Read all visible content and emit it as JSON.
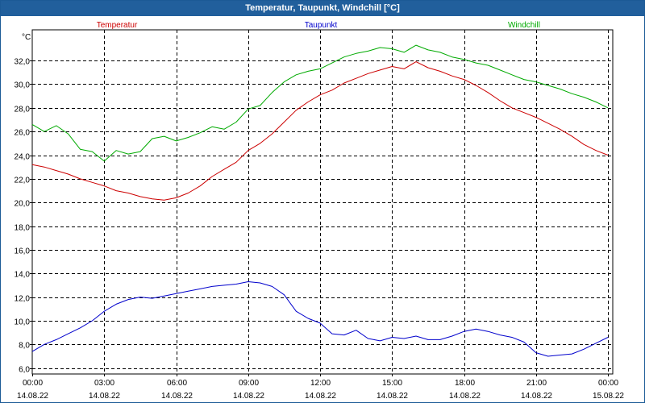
{
  "window": {
    "title": "Temperatur, Taupunkt, Windchill [°C]"
  },
  "colors": {
    "titlebar": "#215f9c",
    "temperatur": "#cc0000",
    "taupunkt": "#0000cc",
    "windchill": "#00aa00"
  },
  "chart_data": {
    "type": "line",
    "title": "Temperatur, Taupunkt, Windchill [°C]",
    "ylabel": "°C",
    "ylim": [
      5.5,
      34.6
    ],
    "y_ticks": [
      6,
      8,
      10,
      12,
      14,
      16,
      18,
      20,
      22,
      24,
      26,
      28,
      30,
      32
    ],
    "y_tick_labels": [
      "6,0",
      "8,0",
      "10,0",
      "12,0",
      "14,0",
      "16,0",
      "18,0",
      "20,0",
      "22,0",
      "24,0",
      "26,0",
      "28,0",
      "30,0",
      "32,0"
    ],
    "xlim": [
      0,
      24.2
    ],
    "x_ticks": [
      0,
      3,
      6,
      9,
      12,
      15,
      18,
      21,
      24
    ],
    "x_tick_labels": [
      [
        "00:00",
        "14.08.22"
      ],
      [
        "03:00",
        "14.08.22"
      ],
      [
        "06:00",
        "14.08.22"
      ],
      [
        "09:00",
        "14.08.22"
      ],
      [
        "12:00",
        "14.08.22"
      ],
      [
        "15:00",
        "14.08.22"
      ],
      [
        "18:00",
        "14.08.22"
      ],
      [
        "21:00",
        "14.08.22"
      ],
      [
        "00:00",
        "15.08.22"
      ]
    ],
    "grid": true,
    "legend_position": "top",
    "series": [
      {
        "name": "Temperatur",
        "color": "#cc0000",
        "x": [
          0,
          0.5,
          1,
          1.5,
          2,
          2.5,
          3,
          3.5,
          4,
          4.5,
          5,
          5.5,
          6,
          6.5,
          7,
          7.5,
          8,
          8.5,
          9,
          9.5,
          10,
          10.5,
          11,
          11.5,
          12,
          12.5,
          13,
          13.5,
          14,
          14.5,
          15,
          15.5,
          16,
          16.5,
          17,
          17.5,
          18,
          18.5,
          19,
          19.5,
          20,
          20.5,
          21,
          21.5,
          22,
          22.5,
          23,
          23.5,
          24
        ],
        "values": [
          23.2,
          23.0,
          22.7,
          22.4,
          22.0,
          21.7,
          21.4,
          21.0,
          20.8,
          20.5,
          20.3,
          20.2,
          20.4,
          20.8,
          21.4,
          22.2,
          22.8,
          23.4,
          24.4,
          25.0,
          25.8,
          26.8,
          27.8,
          28.5,
          29.1,
          29.5,
          30.1,
          30.5,
          30.9,
          31.2,
          31.5,
          31.3,
          31.9,
          31.4,
          31.1,
          30.7,
          30.4,
          29.9,
          29.3,
          28.6,
          28.0,
          27.6,
          27.2,
          26.7,
          26.2,
          25.6,
          24.9,
          24.4,
          24.0
        ]
      },
      {
        "name": "Taupunkt",
        "color": "#0000cc",
        "x": [
          0,
          0.5,
          1,
          1.5,
          2,
          2.5,
          3,
          3.5,
          4,
          4.5,
          5,
          5.5,
          6,
          6.5,
          7,
          7.5,
          8,
          8.5,
          9,
          9.5,
          10,
          10.5,
          11,
          11.5,
          12,
          12.5,
          13,
          13.5,
          14,
          14.5,
          15,
          15.5,
          16,
          16.5,
          17,
          17.5,
          18,
          18.5,
          19,
          19.5,
          20,
          20.5,
          21,
          21.5,
          22,
          22.5,
          23,
          23.5,
          24
        ],
        "values": [
          7.4,
          8.0,
          8.4,
          8.9,
          9.4,
          10.0,
          10.8,
          11.4,
          11.8,
          12.0,
          11.9,
          12.1,
          12.3,
          12.5,
          12.7,
          12.9,
          13.0,
          13.1,
          13.3,
          13.2,
          12.9,
          12.2,
          10.8,
          10.2,
          9.8,
          8.9,
          8.8,
          9.2,
          8.5,
          8.3,
          8.6,
          8.5,
          8.7,
          8.4,
          8.4,
          8.7,
          9.1,
          9.3,
          9.1,
          8.8,
          8.6,
          8.2,
          7.3,
          7.0,
          7.1,
          7.2,
          7.6,
          8.1,
          8.6
        ]
      },
      {
        "name": "Windchill",
        "color": "#00aa00",
        "x": [
          0,
          0.5,
          1,
          1.5,
          2,
          2.5,
          3,
          3.5,
          4,
          4.5,
          5,
          5.5,
          6,
          6.5,
          7,
          7.5,
          8,
          8.5,
          9,
          9.5,
          10,
          10.5,
          11,
          11.5,
          12,
          12.5,
          13,
          13.5,
          14,
          14.5,
          15,
          15.5,
          16,
          16.5,
          17,
          17.5,
          18,
          18.5,
          19,
          19.5,
          20,
          20.5,
          21,
          21.5,
          22,
          22.5,
          23,
          23.5,
          24
        ],
        "values": [
          26.6,
          26.0,
          26.5,
          25.8,
          24.5,
          24.3,
          23.5,
          24.4,
          24.1,
          24.3,
          25.4,
          25.6,
          25.2,
          25.5,
          25.9,
          26.4,
          26.2,
          26.8,
          27.9,
          28.2,
          29.3,
          30.2,
          30.8,
          31.1,
          31.3,
          31.8,
          32.3,
          32.6,
          32.8,
          33.1,
          33.0,
          32.7,
          33.3,
          32.9,
          32.7,
          32.3,
          32.1,
          31.8,
          31.6,
          31.2,
          30.8,
          30.4,
          30.2,
          29.9,
          29.6,
          29.2,
          28.9,
          28.5,
          28.0
        ]
      }
    ]
  }
}
